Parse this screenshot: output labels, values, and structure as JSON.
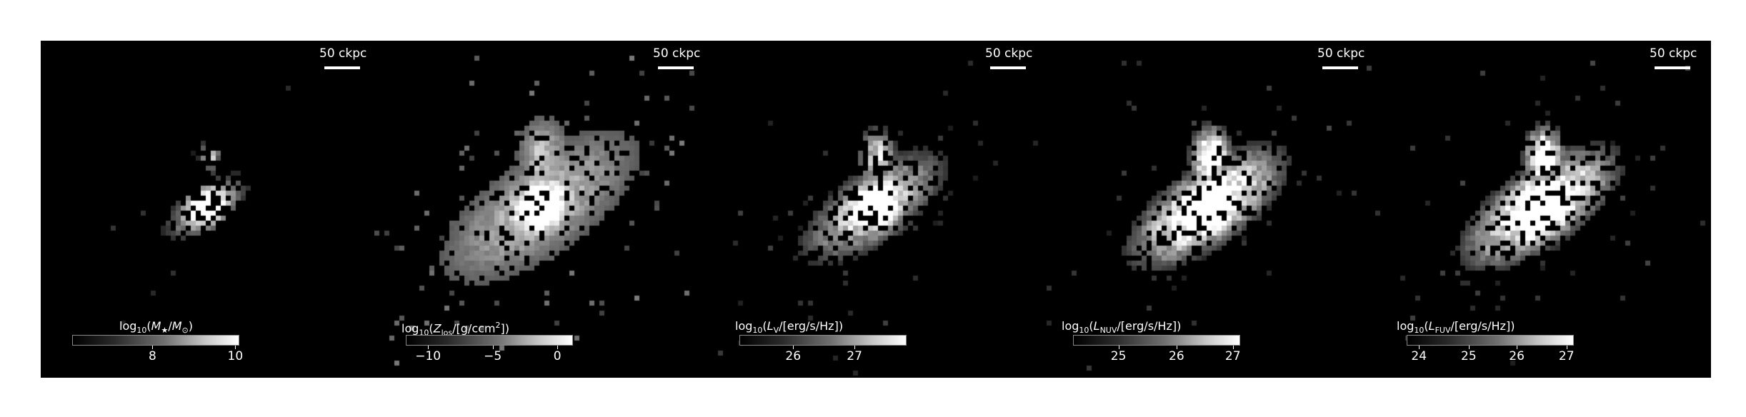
{
  "scalebar_label": "50 ckpc",
  "panels": [
    {
      "id": "stellar-mass",
      "colorbar_label_parts": [
        "log",
        "10",
        "(",
        "M",
        "★",
        "/",
        "M",
        "⊙",
        ")"
      ],
      "colorbar_label_text": "log10(M★/M⊙)",
      "tick_labels": [
        "8",
        "10"
      ],
      "tick_fractions": [
        0.48,
        0.98
      ],
      "brightness_profile": "concentrated"
    },
    {
      "id": "metallicity",
      "colorbar_label_text": "log10(Zlos/[g/ccm2])",
      "tick_labels": [
        "−10",
        "−5",
        "0"
      ],
      "tick_fractions": [
        0.13,
        0.52,
        0.91
      ],
      "brightness_profile": "extended"
    },
    {
      "id": "v-band",
      "colorbar_label_text": "log10(LV/[erg/s/Hz])",
      "tick_labels": [
        "26",
        "27"
      ],
      "tick_fractions": [
        0.32,
        0.69
      ],
      "brightness_profile": "medium"
    },
    {
      "id": "nuv",
      "colorbar_label_text": "log10(LNUV/[erg/s/Hz])",
      "tick_labels": [
        "25",
        "26",
        "27"
      ],
      "tick_fractions": [
        0.27,
        0.62,
        0.96
      ],
      "brightness_profile": "bright"
    },
    {
      "id": "fuv",
      "colorbar_label_text": "log10(LFUV/[erg/s/Hz])",
      "tick_labels": [
        "24",
        "25",
        "26",
        "27"
      ],
      "tick_fractions": [
        0.07,
        0.37,
        0.66,
        0.96
      ],
      "brightness_profile": "bright"
    }
  ]
}
